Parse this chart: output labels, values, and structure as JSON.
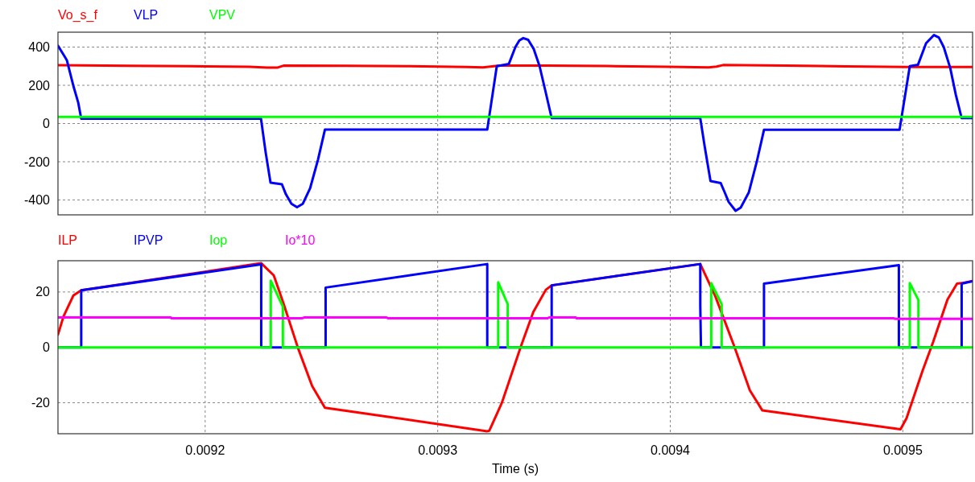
{
  "chart_data": [
    {
      "type": "line",
      "legend": "top left",
      "grid": true,
      "tick_labels": "y",
      "xlim": [
        0.0091367,
        0.00953
      ],
      "xticks": [
        0.0092,
        0.0093,
        0.0094,
        0.0095
      ],
      "ylim": [
        -478,
        478
      ],
      "yticks": [
        400,
        200,
        0,
        -200,
        -400
      ],
      "series": [
        {
          "name": "Vo_s_f",
          "color": "#ff0000",
          "x": [
            0.0091367,
            0.0091672,
            0.0091931,
            0.0092191,
            0.0092267,
            0.0092312,
            0.0092337,
            0.0092607,
            0.0092866,
            0.0093126,
            0.0093195,
            0.0093265,
            0.0093472,
            0.0093722,
            0.0093992,
            0.0094165,
            0.0094199,
            0.0094227,
            0.0094494,
            0.0094753,
            0.009502,
            0.00953
          ],
          "values": [
            305,
            302,
            300,
            297,
            293,
            293,
            303,
            302,
            300,
            296,
            294,
            303,
            303,
            301,
            297,
            294,
            298,
            306,
            303,
            299,
            296,
            296
          ]
        },
        {
          "name": "VLP",
          "color": "#0000ff",
          "x": [
            0.0091367,
            0.0091391,
            0.0091405,
            0.0091433,
            0.0091454,
            0.0091467,
            0.009224,
            0.009226,
            0.0092281,
            0.009233,
            0.0092347,
            0.0092371,
            0.0092395,
            0.009242,
            0.0092451,
            0.0092485,
            0.0092515,
            0.0093213,
            0.0093254,
            0.0093306,
            0.0093334,
            0.0093351,
            0.0093368,
            0.0093389,
            0.0093413,
            0.0093438,
            0.0093465,
            0.009349,
            0.0094129,
            0.0094148,
            0.0094173,
            0.0094217,
            0.0094234,
            0.0094251,
            0.0094281,
            0.0094303,
            0.0094338,
            0.0094372,
            0.0094403,
            0.0094986,
            0.009503,
            0.0095065,
            0.00951,
            0.0095134,
            0.0095155,
            0.0095176,
            0.0095204,
            0.0095228,
            0.0095253,
            0.00953
          ],
          "values": [
            407,
            360,
            332,
            198,
            110,
            25,
            25,
            -150,
            -310,
            -318,
            -370,
            -420,
            -438,
            -420,
            -340,
            -190,
            -32,
            -32,
            300,
            312,
            400,
            435,
            447,
            438,
            390,
            300,
            160,
            28,
            28,
            -120,
            -301,
            -312,
            -360,
            -410,
            -457,
            -440,
            -360,
            -200,
            -33,
            -33,
            300,
            307,
            420,
            463,
            450,
            400,
            290,
            150,
            28,
            28
          ]
        },
        {
          "name": "VPV",
          "color": "#00ff00",
          "x": [
            0.0091367,
            0.00953
          ],
          "values": [
            35,
            35
          ]
        }
      ]
    },
    {
      "type": "line",
      "legend": "top left",
      "grid": true,
      "xlabel": "Time (s)",
      "xlim": [
        0.0091367,
        0.00953
      ],
      "xticks": [
        0.0092,
        0.0093,
        0.0094,
        0.0095
      ],
      "ylim": [
        -31.2,
        31.3
      ],
      "yticks": [
        20,
        0,
        -20
      ],
      "series": [
        {
          "name": "ILP",
          "color": "#ff0000",
          "x": [
            0.0091367,
            0.0091391,
            0.0091433,
            0.0091467,
            0.0092241,
            0.0092295,
            0.0092337,
            0.0092399,
            0.009246,
            0.0092515,
            0.0093213,
            0.0093222,
            0.0093276,
            0.0093357,
            0.0093411,
            0.0093465,
            0.009349,
            0.0094129,
            0.0094194,
            0.0094275,
            0.0094342,
            0.0094396,
            0.009499,
            0.0095016,
            0.0095084,
            0.0095131,
            0.0095192,
            0.0095233,
            0.0095253,
            0.00953
          ],
          "values": [
            4.6,
            11.2,
            18.7,
            20.6,
            30.4,
            26,
            15.8,
            -0.2,
            -14,
            -21.8,
            -30.3,
            -30.1,
            -20,
            0.2,
            12.8,
            20.8,
            22.4,
            30.1,
            18.4,
            0.4,
            -15.5,
            -22.8,
            -29.6,
            -25.6,
            -8.7,
            2.1,
            17.3,
            23,
            23.2,
            24
          ]
        },
        {
          "name": "IPVP",
          "color": "#0000ff",
          "x": [
            0.0091367,
            0.0091467,
            0.0091467,
            0.0092241,
            0.0092241,
            0.0092518,
            0.0092518,
            0.0093213,
            0.0093213,
            0.009349,
            0.009349,
            0.0094129,
            0.0094129,
            0.0094132,
            0.0094403,
            0.0094403,
            0.0094983,
            0.0094983,
            0.0095253,
            0.0095253,
            0.00953
          ],
          "values": [
            0,
            0,
            20.6,
            30,
            0,
            0,
            21.6,
            30.1,
            0,
            0,
            22.4,
            30.1,
            15,
            0,
            0,
            23,
            29.7,
            0,
            0,
            23,
            23.9
          ]
        },
        {
          "name": "Iop",
          "color": "#00ff00",
          "x": [
            0.0091367,
            0.0092282,
            0.0092282,
            0.0092334,
            0.0092334,
            0.009326,
            0.009326,
            0.0093301,
            0.0093301,
            0.0094176,
            0.0094176,
            0.0094221,
            0.0094221,
            0.009503,
            0.009503,
            0.0095067,
            0.0095067,
            0.00953
          ],
          "values": [
            0,
            0,
            24.1,
            14.7,
            0,
            0,
            23.5,
            15.6,
            0,
            0,
            23.2,
            15.6,
            0,
            0,
            23.2,
            17.1,
            0,
            0
          ]
        },
        {
          "name": "Io*10",
          "color": "#ff00ff",
          "x": [
            0.0091367,
            0.0091852,
            0.0091855,
            0.0092416,
            0.0092427,
            0.009278,
            0.0092787,
            0.0093472,
            0.0093479,
            0.0093594,
            0.0093597,
            0.0094961,
            0.0094968,
            0.00953
          ],
          "values": [
            10.8,
            10.8,
            10.5,
            10.5,
            10.8,
            10.8,
            10.5,
            10.5,
            10.8,
            10.8,
            10.5,
            10.5,
            10.3,
            10.3
          ]
        }
      ]
    }
  ]
}
